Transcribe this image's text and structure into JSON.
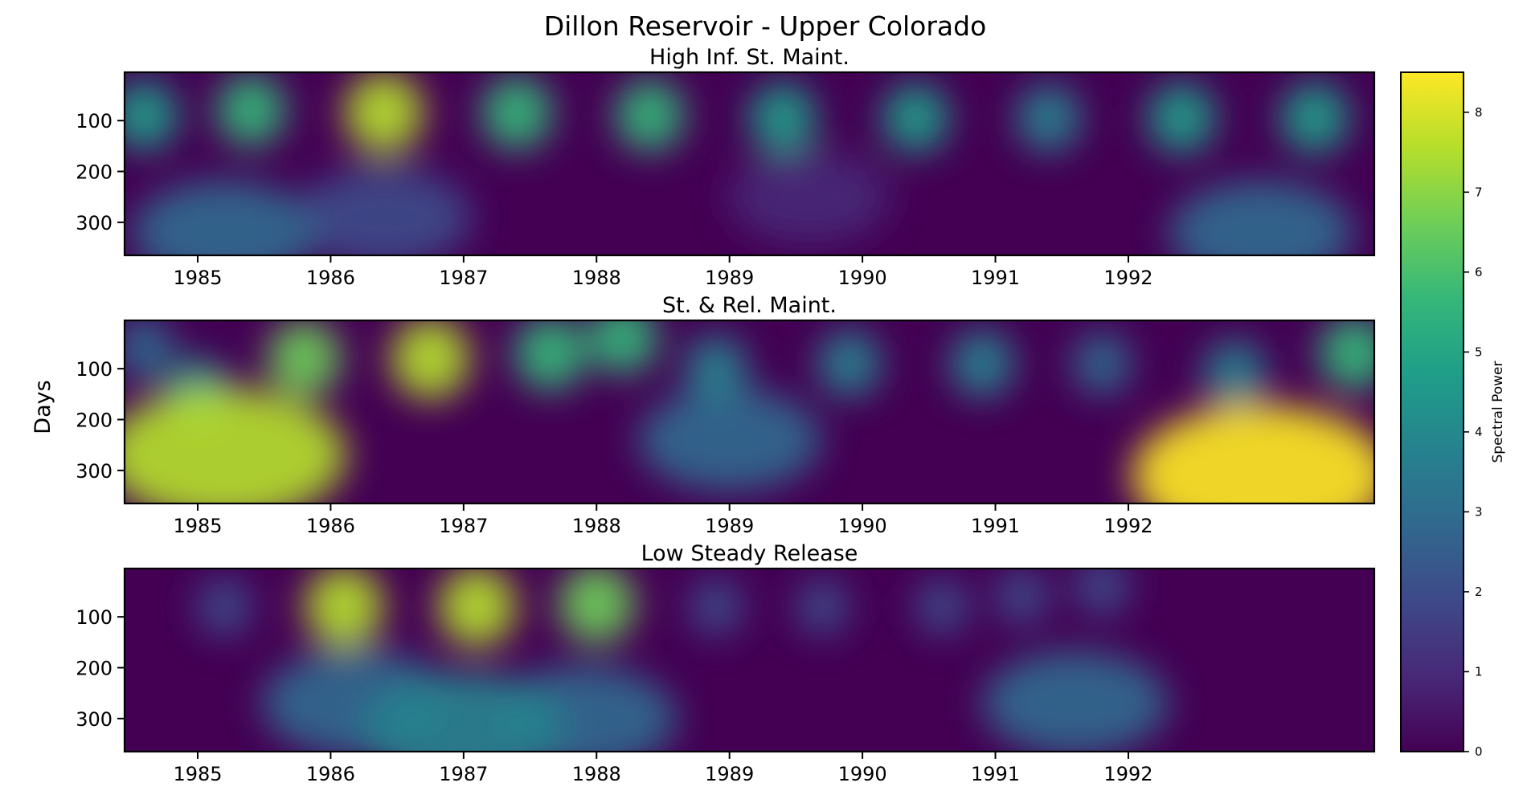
{
  "chart_data": {
    "type": "heatmap",
    "title": "Dillon Reservoir - Upper Colorado",
    "ylabel": "Days",
    "colorbar": {
      "label": "Spectral Power",
      "range": [
        0,
        8.5
      ],
      "ticks": [
        0,
        1,
        2,
        3,
        4,
        5,
        6,
        7,
        8
      ],
      "colormap": [
        "#440154",
        "#482878",
        "#3e4989",
        "#31688e",
        "#26828e",
        "#1f9e89",
        "#35b779",
        "#6ece58",
        "#b5de2b",
        "#fde725"
      ]
    },
    "x_range": [
      1984.45,
      1993.85
    ],
    "y_range": [
      5,
      365
    ],
    "y_reversed": true,
    "x_ticks": [
      "1985",
      "1986",
      "1987",
      "1988",
      "1989",
      "1990",
      "1991",
      "1992"
    ],
    "y_ticks": [
      "100",
      "200",
      "300"
    ],
    "panels": [
      {
        "subtitle": "High Inf. St. Maint.",
        "hotspots": [
          {
            "year": 1984.6,
            "day": 90,
            "power": 4.6
          },
          {
            "year": 1985.4,
            "day": 80,
            "power": 5.2
          },
          {
            "year": 1986.4,
            "day": 85,
            "power": 7.6
          },
          {
            "year": 1987.4,
            "day": 85,
            "power": 5.6
          },
          {
            "year": 1988.4,
            "day": 90,
            "power": 5.2
          },
          {
            "year": 1989.4,
            "day": 95,
            "power": 4.8
          },
          {
            "year": 1990.4,
            "day": 95,
            "power": 4.5
          },
          {
            "year": 1991.4,
            "day": 95,
            "power": 4.2
          },
          {
            "year": 1992.4,
            "day": 95,
            "power": 4.9
          },
          {
            "year": 1993.4,
            "day": 95,
            "power": 5.0
          },
          {
            "year": 1985.2,
            "day": 320,
            "power": 2.6
          },
          {
            "year": 1986.4,
            "day": 290,
            "power": 1.8
          },
          {
            "year": 1989.6,
            "day": 250,
            "power": 0.7
          },
          {
            "year": 1993.0,
            "day": 320,
            "power": 2.5
          }
        ]
      },
      {
        "subtitle": "St. & Rel. Maint.",
        "hotspots": [
          {
            "year": 1984.6,
            "day": 60,
            "power": 3.0
          },
          {
            "year": 1985.0,
            "day": 150,
            "power": 4.8
          },
          {
            "year": 1985.2,
            "day": 270,
            "power": 7.1
          },
          {
            "year": 1985.8,
            "day": 80,
            "power": 6.3
          },
          {
            "year": 1986.75,
            "day": 80,
            "power": 7.6
          },
          {
            "year": 1987.65,
            "day": 70,
            "power": 5.8
          },
          {
            "year": 1988.2,
            "day": 40,
            "power": 5.2
          },
          {
            "year": 1988.9,
            "day": 100,
            "power": 4.0
          },
          {
            "year": 1989.0,
            "day": 240,
            "power": 2.4
          },
          {
            "year": 1989.9,
            "day": 90,
            "power": 3.9
          },
          {
            "year": 1990.9,
            "day": 90,
            "power": 4.1
          },
          {
            "year": 1991.8,
            "day": 90,
            "power": 3.0
          },
          {
            "year": 1992.8,
            "day": 110,
            "power": 4.0
          },
          {
            "year": 1993.0,
            "day": 310,
            "power": 8.3
          },
          {
            "year": 1993.7,
            "day": 70,
            "power": 5.8
          }
        ]
      },
      {
        "subtitle": "Low Steady Release",
        "hotspots": [
          {
            "year": 1985.2,
            "day": 80,
            "power": 2.2
          },
          {
            "year": 1986.1,
            "day": 80,
            "power": 7.6
          },
          {
            "year": 1987.1,
            "day": 80,
            "power": 7.3
          },
          {
            "year": 1988.0,
            "day": 75,
            "power": 7.0
          },
          {
            "year": 1986.2,
            "day": 270,
            "power": 3.0
          },
          {
            "year": 1987.0,
            "day": 320,
            "power": 3.9
          },
          {
            "year": 1987.9,
            "day": 300,
            "power": 2.7
          },
          {
            "year": 1988.9,
            "day": 80,
            "power": 1.8
          },
          {
            "year": 1989.7,
            "day": 80,
            "power": 1.5
          },
          {
            "year": 1990.6,
            "day": 80,
            "power": 1.6
          },
          {
            "year": 1991.2,
            "day": 60,
            "power": 1.7
          },
          {
            "year": 1991.6,
            "day": 270,
            "power": 2.6
          },
          {
            "year": 1991.8,
            "day": 40,
            "power": 2.2
          }
        ]
      }
    ]
  }
}
